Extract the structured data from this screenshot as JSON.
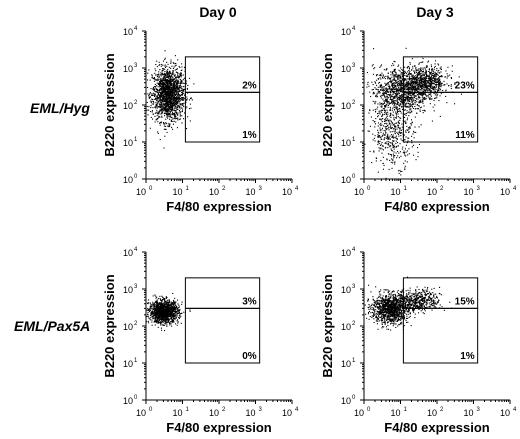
{
  "column_titles": [
    "Day 0",
    "Day 3"
  ],
  "row_labels": [
    "EML/Hyg",
    "EML/Pax5A"
  ],
  "chart_data": [
    {
      "type": "scatter",
      "row": "EML/Hyg",
      "column": "Day 0",
      "xlabel": "F4/80 expression",
      "ylabel": "B220 expression",
      "scale": "log",
      "xlim": [
        1,
        10000
      ],
      "ylim": [
        1,
        10000
      ],
      "tick_exponents": [
        "0",
        "1",
        "2",
        "3",
        "4"
      ],
      "gate_x": [
        12,
        1300
      ],
      "gate_y": [
        10,
        220,
        2000
      ],
      "gate_labels": {
        "upper": "2%",
        "lower": "1%"
      },
      "clusters": [
        {
          "cx": 4,
          "cy": 200,
          "sx": 0.22,
          "sy": 0.36,
          "n": 1700
        }
      ]
    },
    {
      "type": "scatter",
      "row": "EML/Hyg",
      "column": "Day 3",
      "xlabel": "F4/80 expression",
      "ylabel": "B220 expression",
      "scale": "log",
      "xlim": [
        1,
        10000
      ],
      "ylim": [
        1,
        10000
      ],
      "tick_exponents": [
        "0",
        "1",
        "2",
        "3",
        "4"
      ],
      "gate_x": [
        12,
        1300
      ],
      "gate_y": [
        10,
        220,
        2000
      ],
      "gate_labels": {
        "upper": "23%",
        "lower": "11%"
      },
      "clusters": [
        {
          "cx": 10,
          "cy": 250,
          "sx": 0.38,
          "sy": 0.32,
          "n": 1100
        },
        {
          "cx": 50,
          "cy": 450,
          "sx": 0.3,
          "sy": 0.2,
          "n": 650
        },
        {
          "cx": 6,
          "cy": 18,
          "sx": 0.3,
          "sy": 0.45,
          "n": 450
        }
      ]
    },
    {
      "type": "scatter",
      "row": "EML/Pax5A",
      "column": "Day 0",
      "xlabel": "F4/80 expression",
      "ylabel": "B220 expression",
      "scale": "log",
      "xlim": [
        1,
        10000
      ],
      "ylim": [
        1,
        10000
      ],
      "tick_exponents": [
        "0",
        "1",
        "2",
        "3",
        "4"
      ],
      "gate_x": [
        12,
        1300
      ],
      "gate_y": [
        10,
        300,
        2000
      ],
      "gate_labels": {
        "upper": "3%",
        "lower": "0%"
      },
      "clusters": [
        {
          "cx": 3,
          "cy": 250,
          "sx": 0.2,
          "sy": 0.15,
          "n": 1300
        }
      ]
    },
    {
      "type": "scatter",
      "row": "EML/Pax5A",
      "column": "Day 3",
      "xlabel": "F4/80 expression",
      "ylabel": "B220 expression",
      "scale": "log",
      "xlim": [
        1,
        10000
      ],
      "ylim": [
        1,
        10000
      ],
      "tick_exponents": [
        "0",
        "1",
        "2",
        "3",
        "4"
      ],
      "gate_x": [
        12,
        1300
      ],
      "gate_y": [
        10,
        300,
        2000
      ],
      "gate_labels": {
        "upper": "15%",
        "lower": "1%"
      },
      "clusters": [
        {
          "cx": 5,
          "cy": 300,
          "sx": 0.25,
          "sy": 0.2,
          "n": 1100
        },
        {
          "cx": 30,
          "cy": 500,
          "sx": 0.3,
          "sy": 0.15,
          "n": 450
        }
      ]
    }
  ]
}
